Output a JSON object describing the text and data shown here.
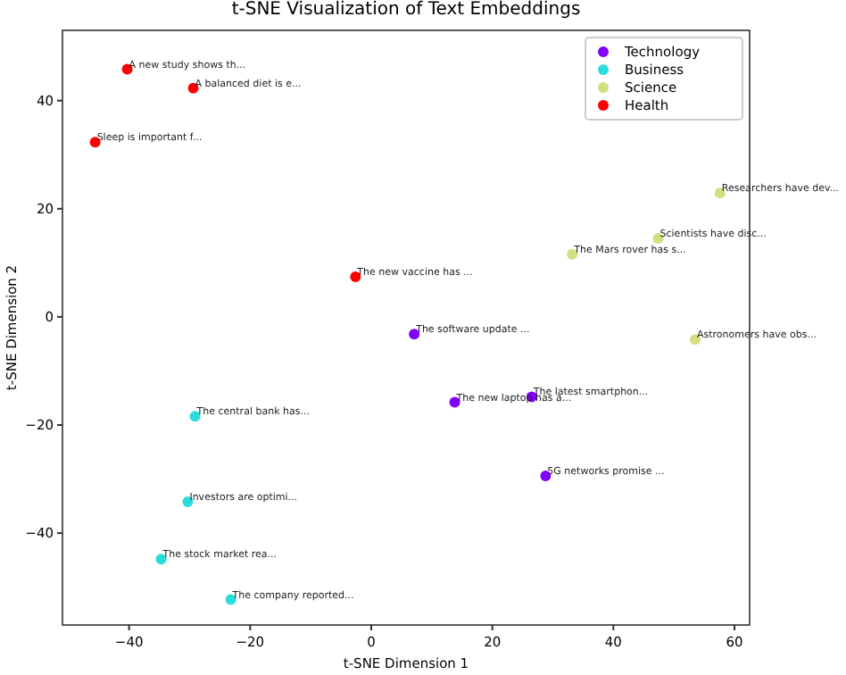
{
  "chart_data": {
    "type": "scatter",
    "title": "t-SNE Visualization of Text Embeddings",
    "xlabel": "t-SNE Dimension 1",
    "ylabel": "t-SNE Dimension 2",
    "xlim": [
      -51,
      62.5
    ],
    "ylim": [
      -57,
      53
    ],
    "xticks": [
      -40,
      -20,
      0,
      20,
      40,
      60
    ],
    "yticks": [
      -40,
      -20,
      0,
      20,
      40
    ],
    "grid": false,
    "legend": "top right",
    "marker": "circle",
    "series": [
      {
        "name": "Technology",
        "color": "#8000ff",
        "x": [
          7.1,
          13.8,
          26.5,
          28.8
        ],
        "values": [
          -3.2,
          -15.8,
          -14.8,
          -29.4
        ]
      },
      {
        "name": "Business",
        "color": "#2adddd",
        "x": [
          -29.1,
          -30.3,
          -34.7,
          -23.2
        ],
        "values": [
          -18.4,
          -34.2,
          -44.8,
          -52.3
        ]
      },
      {
        "name": "Science",
        "color": "#d4dd80",
        "x": [
          57.6,
          47.4,
          33.2,
          53.5
        ],
        "values": [
          22.9,
          14.5,
          11.6,
          -4.2
        ]
      },
      {
        "name": "Health",
        "color": "#ff0000",
        "x": [
          -40.3,
          -29.4,
          -45.6,
          -2.6
        ],
        "values": [
          45.8,
          42.3,
          32.3,
          7.4
        ]
      }
    ],
    "annotations": [
      {
        "text": "The software update ...",
        "x": 7.1,
        "y": -3.2
      },
      {
        "text": "The new laptop has a...",
        "x": 13.8,
        "y": -15.8
      },
      {
        "text": "The latest smartphon...",
        "x": 26.5,
        "y": -14.8
      },
      {
        "text": "5G networks promise ...",
        "x": 28.8,
        "y": -29.4
      },
      {
        "text": "The central bank has...",
        "x": -29.1,
        "y": -18.4
      },
      {
        "text": "Investors are optimi...",
        "x": -30.3,
        "y": -34.2
      },
      {
        "text": "The stock market rea...",
        "x": -34.7,
        "y": -44.8
      },
      {
        "text": "The company reported...",
        "x": -23.2,
        "y": -52.3
      },
      {
        "text": "Researchers have dev...",
        "x": 57.6,
        "y": 22.9
      },
      {
        "text": "Scientists have disc...",
        "x": 47.4,
        "y": 14.5
      },
      {
        "text": "The Mars rover has s...",
        "x": 33.2,
        "y": 11.6
      },
      {
        "text": "Astronomers have obs...",
        "x": 53.5,
        "y": -4.2
      },
      {
        "text": "A new study shows th...",
        "x": -40.3,
        "y": 45.8
      },
      {
        "text": "A balanced diet is e...",
        "x": -29.4,
        "y": 42.3
      },
      {
        "text": "Sleep is important f...",
        "x": -45.6,
        "y": 32.3
      },
      {
        "text": "The new vaccine has ...",
        "x": -2.6,
        "y": 7.4
      }
    ]
  }
}
